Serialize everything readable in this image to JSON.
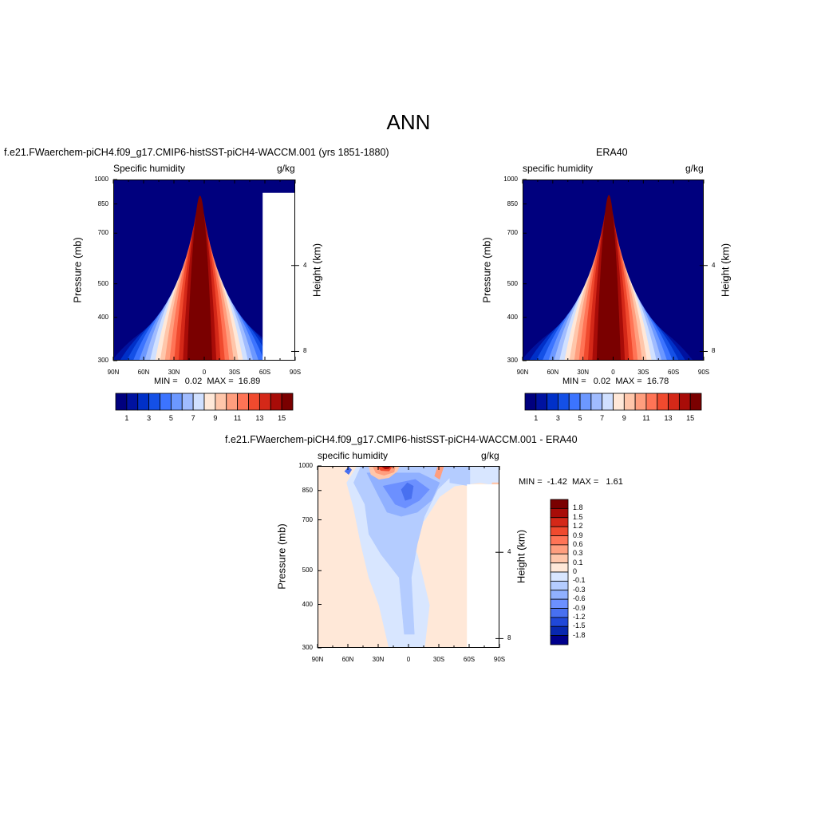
{
  "main_title": "ANN",
  "chart_data": [
    {
      "type": "heatmap",
      "title": "f.e21.FWaerchem-piCH4.f09_g17.CMIP6-histSST-piCH4-WACCM.001 (yrs 1851-1880)",
      "left_string": "Specific humidity",
      "right_string": "g/kg",
      "ylabel": "Pressure (mb)",
      "ylabel_right": "Height (km)",
      "x_ticks": [
        "90N",
        "60N",
        "30N",
        "0",
        "30S",
        "60S",
        "90S"
      ],
      "x_range": [
        90,
        -90
      ],
      "y_ticks": [
        300,
        400,
        500,
        700,
        850,
        1000
      ],
      "y_range": [
        1000,
        300
      ],
      "y_log": true,
      "height_ticks": [
        8,
        4
      ],
      "stats": "MIN =   0.02  MAX =  16.89",
      "min": 0.02,
      "max": 16.89,
      "peak_lat": 5,
      "peak_pres": 1000,
      "colorbar_labels": [
        "1",
        "3",
        "5",
        "7",
        "9",
        "11",
        "13",
        "15"
      ],
      "colorbar_levels": [
        1,
        2,
        3,
        4,
        5,
        6,
        7,
        8,
        9,
        10,
        11,
        12,
        13,
        14,
        15
      ],
      "masked_topography": true
    },
    {
      "type": "heatmap",
      "title": "ERA40",
      "left_string": "specific humidity",
      "right_string": "g/kg",
      "ylabel": "Pressure (mb)",
      "ylabel_right": "Height (km)",
      "x_ticks": [
        "90N",
        "60N",
        "30N",
        "0",
        "30S",
        "60S",
        "90S"
      ],
      "x_range": [
        90,
        -90
      ],
      "y_ticks": [
        300,
        400,
        500,
        700,
        850,
        1000
      ],
      "y_range": [
        1000,
        300
      ],
      "y_log": true,
      "height_ticks": [
        8,
        4
      ],
      "stats": "MIN =   0.02  MAX =  16.78",
      "min": 0.02,
      "max": 16.78,
      "peak_lat": 5,
      "peak_pres": 1000,
      "colorbar_labels": [
        "1",
        "3",
        "5",
        "7",
        "9",
        "11",
        "13",
        "15"
      ],
      "colorbar_levels": [
        1,
        2,
        3,
        4,
        5,
        6,
        7,
        8,
        9,
        10,
        11,
        12,
        13,
        14,
        15
      ],
      "masked_topography": false
    },
    {
      "type": "heatmap",
      "title": "f.e21.FWaerchem-piCH4.f09_g17.CMIP6-histSST-piCH4-WACCM.001 - ERA40",
      "left_string": "specific humidity",
      "right_string": "g/kg",
      "ylabel": "Pressure (mb)",
      "ylabel_right": "Height (km)",
      "x_ticks": [
        "90N",
        "60N",
        "30N",
        "0",
        "30S",
        "60S",
        "90S"
      ],
      "x_range": [
        90,
        -90
      ],
      "y_ticks": [
        300,
        400,
        500,
        700,
        850,
        1000
      ],
      "y_range": [
        1000,
        300
      ],
      "y_log": true,
      "height_ticks": [
        8,
        4
      ],
      "stats": "MIN =  -1.42  MAX =   1.61",
      "min": -1.42,
      "max": 1.61,
      "colorbar_labels": [
        "1.8",
        "1.5",
        "1.2",
        "0.9",
        "0.6",
        "0.3",
        "0.1",
        "0",
        "-0.1",
        "-0.3",
        "-0.6",
        "-0.9",
        "-1.2",
        "-1.5",
        "-1.8"
      ],
      "masked_topography": true
    }
  ],
  "colors": {
    "abs_scale": [
      "#00007e",
      "#0012a0",
      "#0030c8",
      "#1450e6",
      "#3c74ff",
      "#6c98ff",
      "#a0bcff",
      "#d0e0ff",
      "#ffe8d8",
      "#ffc6aa",
      "#ff9e7e",
      "#ff7456",
      "#f04a2e",
      "#d42818",
      "#a80c08",
      "#7a0000"
    ],
    "diff_scale": [
      "#7a0000",
      "#a80c08",
      "#d42818",
      "#f04a2e",
      "#ff7456",
      "#ff9e7e",
      "#ffc6aa",
      "#ffe8d8",
      "#d8e6ff",
      "#b4ccff",
      "#90b0ff",
      "#6c90ff",
      "#4870f0",
      "#2048d8",
      "#0828b0",
      "#00008c"
    ]
  }
}
